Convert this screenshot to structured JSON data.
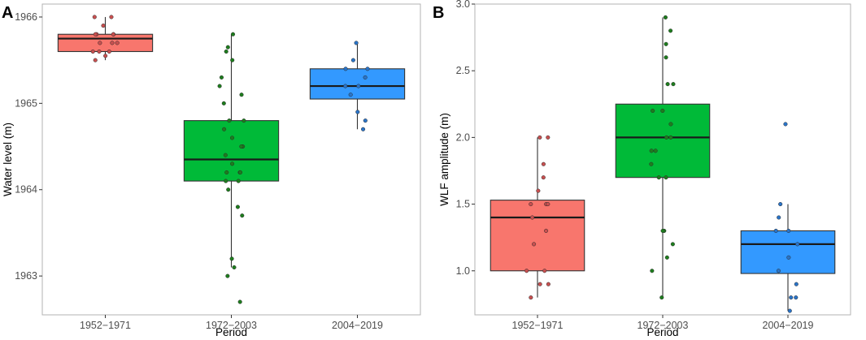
{
  "chart_data": [
    {
      "panel": "A",
      "type": "box",
      "xlabel": "Period",
      "ylabel": "Water level (m)",
      "ylim": [
        1962.55,
        1966.15
      ],
      "yticks": [
        1963,
        1964,
        1965,
        1966
      ],
      "categories": [
        "1952−1971",
        "1972−2003",
        "2004−2019"
      ],
      "colors": [
        "#F8766D",
        "#00BA38",
        "#3399FF"
      ],
      "point_colors": [
        "#C85050",
        "#1E7D1E",
        "#2A74C8"
      ],
      "boxes": [
        {
          "whisker_low": 1965.5,
          "q1": 1965.6,
          "median": 1965.75,
          "q3": 1965.8,
          "whisker_high": 1966.0
        },
        {
          "whisker_low": 1963.1,
          "q1": 1964.1,
          "median": 1964.35,
          "q3": 1964.8,
          "whisker_high": 1965.8
        },
        {
          "whisker_low": 1964.7,
          "q1": 1965.05,
          "median": 1965.2,
          "q3": 1965.4,
          "whisker_high": 1965.7
        }
      ],
      "points": [
        [
          1966.0,
          1966.0,
          1965.9,
          1965.8,
          1965.8,
          1965.8,
          1965.8,
          1965.7,
          1965.7,
          1965.7,
          1965.6,
          1965.6,
          1965.6,
          1965.55,
          1965.5
        ],
        [
          1965.8,
          1965.65,
          1965.6,
          1965.5,
          1965.3,
          1965.2,
          1965.1,
          1965.0,
          1964.8,
          1964.8,
          1964.7,
          1964.6,
          1964.5,
          1964.5,
          1964.4,
          1964.3,
          1964.2,
          1964.2,
          1964.2,
          1964.1,
          1964.1,
          1964.0,
          1963.8,
          1963.7,
          1963.2,
          1963.1,
          1963.0,
          1962.7
        ],
        [
          1965.7,
          1965.5,
          1965.4,
          1965.4,
          1965.3,
          1965.2,
          1965.2,
          1965.1,
          1964.9,
          1964.8,
          1964.7
        ]
      ]
    },
    {
      "panel": "B",
      "type": "box",
      "xlabel": "Period",
      "ylabel": "WLF amplitude (m)",
      "ylim": [
        0.67,
        3.0
      ],
      "yticks": [
        1.0,
        1.5,
        2.0,
        2.5,
        3.0
      ],
      "categories": [
        "1952−1971",
        "1972−2003",
        "2004−2019"
      ],
      "colors": [
        "#F8766D",
        "#00BA38",
        "#3399FF"
      ],
      "point_colors": [
        "#C85050",
        "#1E7D1E",
        "#2A74C8"
      ],
      "boxes": [
        {
          "whisker_low": 0.8,
          "q1": 1.0,
          "median": 1.4,
          "q3": 1.53,
          "whisker_high": 2.0
        },
        {
          "whisker_low": 0.8,
          "q1": 1.7,
          "median": 2.0,
          "q3": 2.25,
          "whisker_high": 2.9
        },
        {
          "whisker_low": 0.7,
          "q1": 0.98,
          "median": 1.2,
          "q3": 1.3,
          "whisker_high": 1.5
        }
      ],
      "points": [
        [
          2.0,
          2.0,
          1.8,
          1.7,
          1.6,
          1.5,
          1.5,
          1.5,
          1.4,
          1.3,
          1.2,
          1.0,
          1.0,
          0.9,
          0.9,
          0.8
        ],
        [
          2.9,
          2.8,
          2.7,
          2.6,
          2.4,
          2.4,
          2.2,
          2.2,
          2.1,
          2.0,
          2.0,
          1.9,
          1.9,
          1.8,
          1.7,
          1.7,
          1.3,
          1.3,
          1.2,
          1.1,
          1.0,
          0.8
        ],
        [
          2.1,
          1.5,
          1.4,
          1.3,
          1.3,
          1.2,
          1.1,
          1.0,
          0.9,
          0.8,
          0.8,
          0.7
        ]
      ]
    }
  ]
}
